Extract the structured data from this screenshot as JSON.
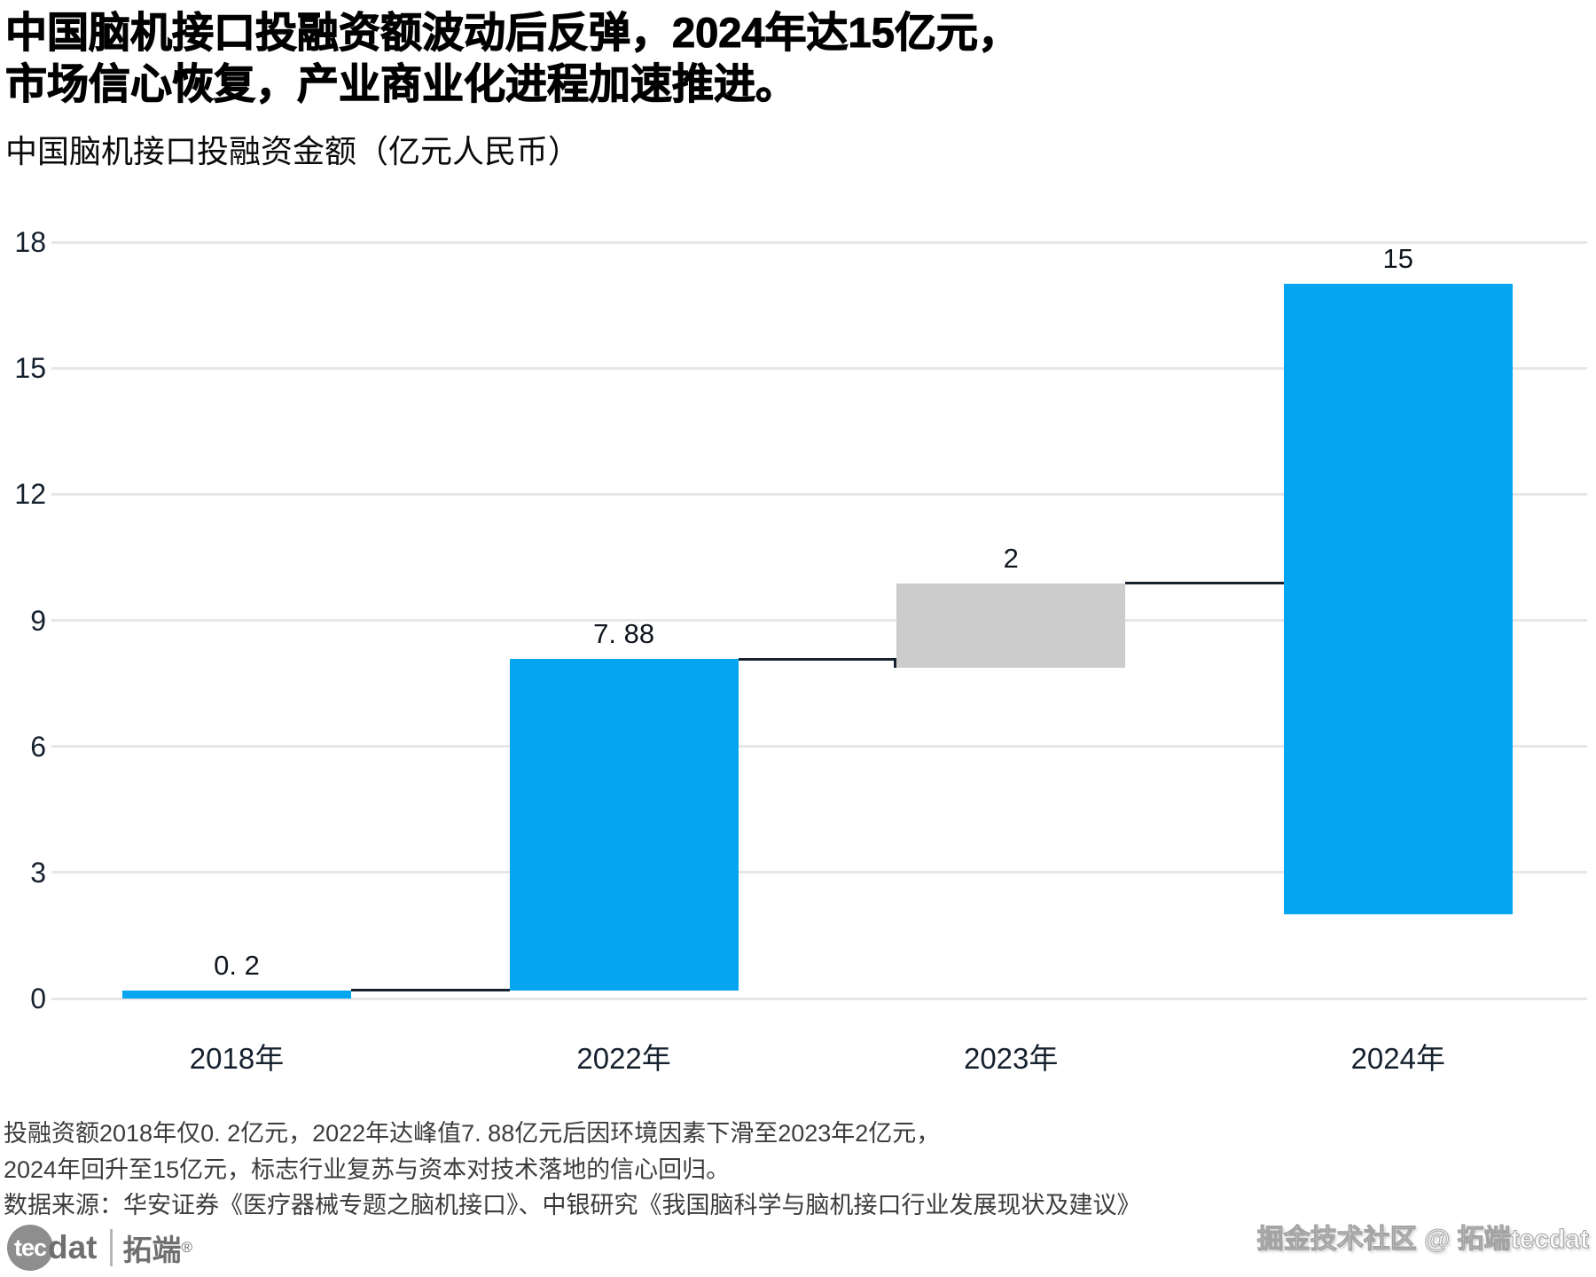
{
  "header": {
    "title_line1": "中国脑机接口投融资额波动后反弹，2024年达15亿元，",
    "title_line2": "市场信心恢复，产业商业化进程加速推进。",
    "subtitle": "中国脑机接口投融资金额（亿元人民币）"
  },
  "chart_data": {
    "type": "bar",
    "subtype": "waterfall",
    "title": "中国脑机接口投融资金额（亿元人民币）",
    "xlabel": "",
    "ylabel": "",
    "categories": [
      "2018年",
      "2022年",
      "2023年",
      "2024年"
    ],
    "values": [
      0.2,
      7.88,
      2,
      15
    ],
    "value_labels": [
      "0. 2",
      "7. 88",
      "2",
      "15"
    ],
    "bars": [
      {
        "category": "2018年",
        "start": 0,
        "end": 0.2,
        "color": "#06a5ef"
      },
      {
        "category": "2022年",
        "start": 0.2,
        "end": 8.08,
        "color": "#06a5ef"
      },
      {
        "category": "2023年",
        "start": 7.88,
        "end": 9.88,
        "color": "#cccccc"
      },
      {
        "category": "2024年",
        "start": 2,
        "end": 17,
        "color": "#06a5ef"
      }
    ],
    "connectors": [
      {
        "from": 0,
        "to": 1,
        "level": 0.2
      },
      {
        "from": 1,
        "to": 2,
        "level": 8.08,
        "drop_to": 7.88
      },
      {
        "from": 2,
        "to": 3,
        "level": 9.88
      }
    ],
    "ylim": [
      0,
      18
    ],
    "yticks": [
      0,
      3,
      6,
      9,
      12,
      15,
      18
    ],
    "grid": true,
    "legend": "none",
    "colors": {
      "bar_blue": "#06a5ef",
      "bar_gray": "#cccccc",
      "connector": "#16222e",
      "gridline": "#e7e7e7",
      "axis_text": "#16212e"
    }
  },
  "footer": {
    "note_line1": "投融资额2018年仅0. 2亿元，2022年达峰值7. 88亿元后因环境因素下滑至2023年2亿元，",
    "note_line2": "2024年回升至15亿元，标志行业复苏与资本对技术落地的信心回归。",
    "source_line": "数据来源：华安证券《医疗器械专题之脑机接口》、中银研究《我国脑科学与脑机接口行业发展现状及建议》"
  },
  "branding": {
    "logo_circle_text": "tec",
    "logo_text": "dat",
    "logo_cn": "拓端",
    "logo_reg": "®",
    "watermark": "掘金技术社区 @ 拓端tecdat"
  }
}
